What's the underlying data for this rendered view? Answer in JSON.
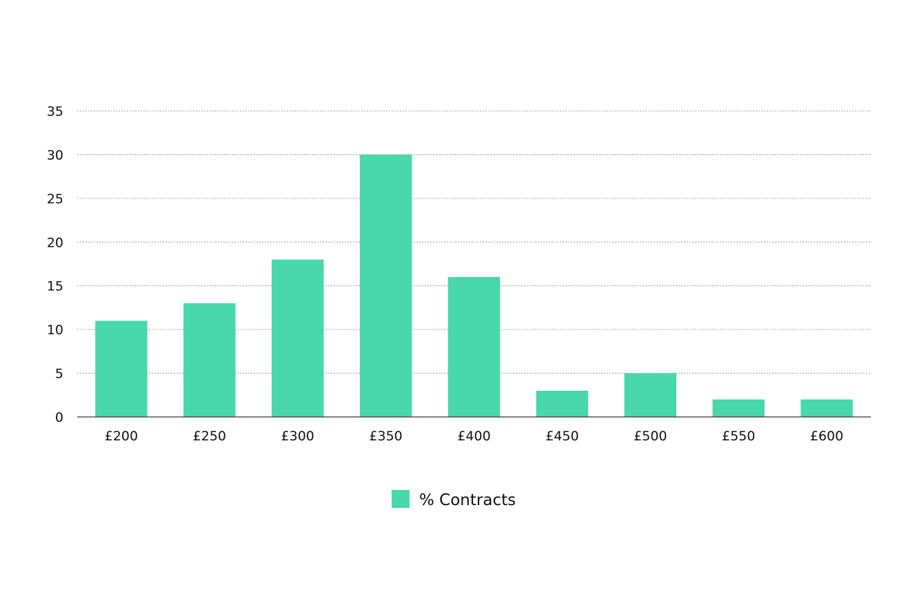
{
  "chart_data": {
    "type": "bar",
    "title": "",
    "xlabel": "",
    "ylabel": "",
    "categories": [
      "£200",
      "£250",
      "£300",
      "£350",
      "£400",
      "£450",
      "£500",
      "£550",
      "£600"
    ],
    "series": [
      {
        "name": "% Contracts",
        "values": [
          11,
          13,
          18,
          30,
          16,
          3,
          5,
          2,
          2
        ],
        "color": "#48d8ac"
      }
    ],
    "ylim": [
      0,
      35
    ],
    "yticks": [
      0,
      5,
      10,
      15,
      20,
      25,
      30,
      35
    ],
    "grid": true,
    "legend_position": "bottom-center"
  }
}
